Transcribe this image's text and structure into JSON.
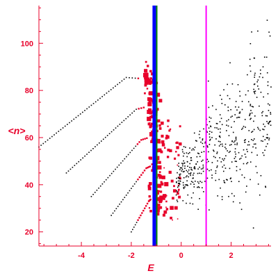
{
  "chart_data": {
    "type": "scatter",
    "xlabel": "E",
    "ylabel": "<n>",
    "xlim": [
      -5.7,
      3.6
    ],
    "ylim": [
      14,
      116
    ],
    "xticks": [
      -4,
      -2,
      0,
      2
    ],
    "yticks": [
      20,
      40,
      60,
      80,
      100
    ],
    "colors": {
      "axis": "#e8002a",
      "black_points": "#000000",
      "red_points": "#e8002a",
      "blue_line": "#0000ff",
      "green_line": "#008000",
      "magenta_line": "#ff00ff"
    },
    "vertical_lines": [
      {
        "x": -1.08,
        "color": "#0000ff",
        "style": "thick"
      },
      {
        "x": -0.98,
        "color": "#008000",
        "style": "medium"
      },
      {
        "x": 1.0,
        "color": "#ff00ff",
        "style": "medium"
      }
    ],
    "series": [
      {
        "color": "#000000",
        "description_values": [
          [
            -5.7,
            56
          ],
          [
            -2.2,
            85.5
          ],
          [
            -1.6,
            85
          ]
        ]
      },
      {
        "color": "#000000",
        "description_values": [
          [
            -4.6,
            45
          ],
          [
            -1.8,
            72
          ],
          [
            -1.4,
            73
          ]
        ]
      },
      {
        "color": "#000000",
        "description_values": [
          [
            -3.6,
            35
          ],
          [
            -1.6,
            59
          ],
          [
            -1.3,
            60
          ]
        ]
      },
      {
        "color": "#000000",
        "description_values": [
          [
            -2.8,
            27
          ],
          [
            -1.4,
            47
          ],
          [
            -1.2,
            48
          ]
        ]
      },
      {
        "color": "#000000",
        "description_values": [
          [
            -2.0,
            20
          ],
          [
            -1.3,
            33
          ],
          [
            -1.2,
            34
          ]
        ]
      }
    ],
    "legend": "none",
    "grid": false
  }
}
